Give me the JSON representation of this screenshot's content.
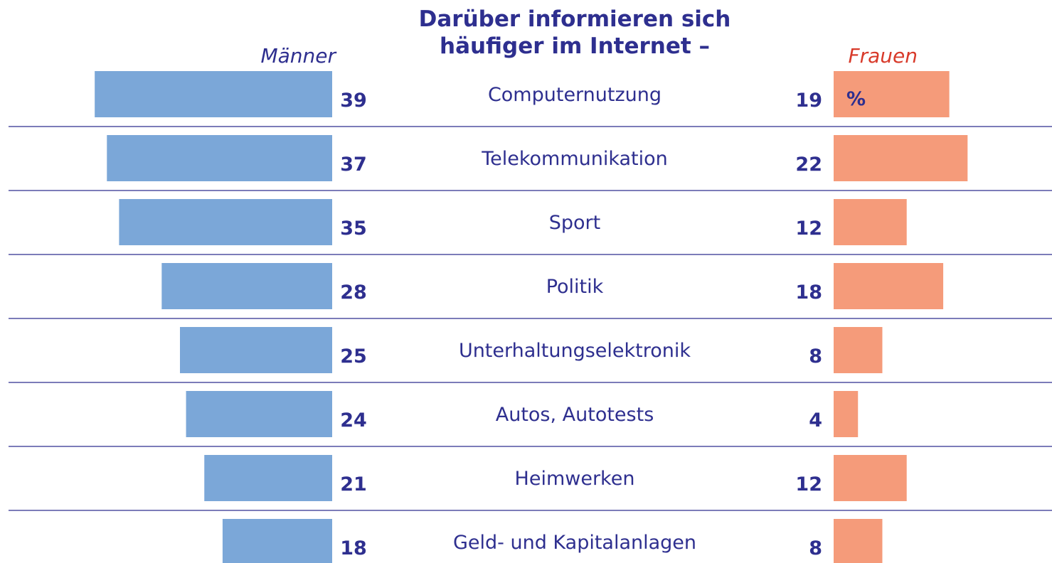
{
  "chart_data": {
    "type": "butterfly_bar",
    "title_lines": [
      "Darüber informieren sich",
      "häufiger im Internet –"
    ],
    "categories": [
      "Computernutzung",
      "Telekommunikation",
      "Sport",
      "Politik",
      "Unterhaltungselektronik",
      "Autos, Autotests",
      "Heimwerken",
      "Geld- und Kapitalanlagen"
    ],
    "series": [
      {
        "name": "Männer",
        "color": "#7ba7d8",
        "label_color": "#2e2f8f",
        "values": [
          39,
          37,
          35,
          28,
          25,
          24,
          21,
          18
        ]
      },
      {
        "name": "Frauen",
        "color": "#f59b7a",
        "label_color": "#d83a2a",
        "values": [
          19,
          22,
          12,
          18,
          8,
          4,
          12,
          8
        ]
      }
    ],
    "unit": "%"
  }
}
